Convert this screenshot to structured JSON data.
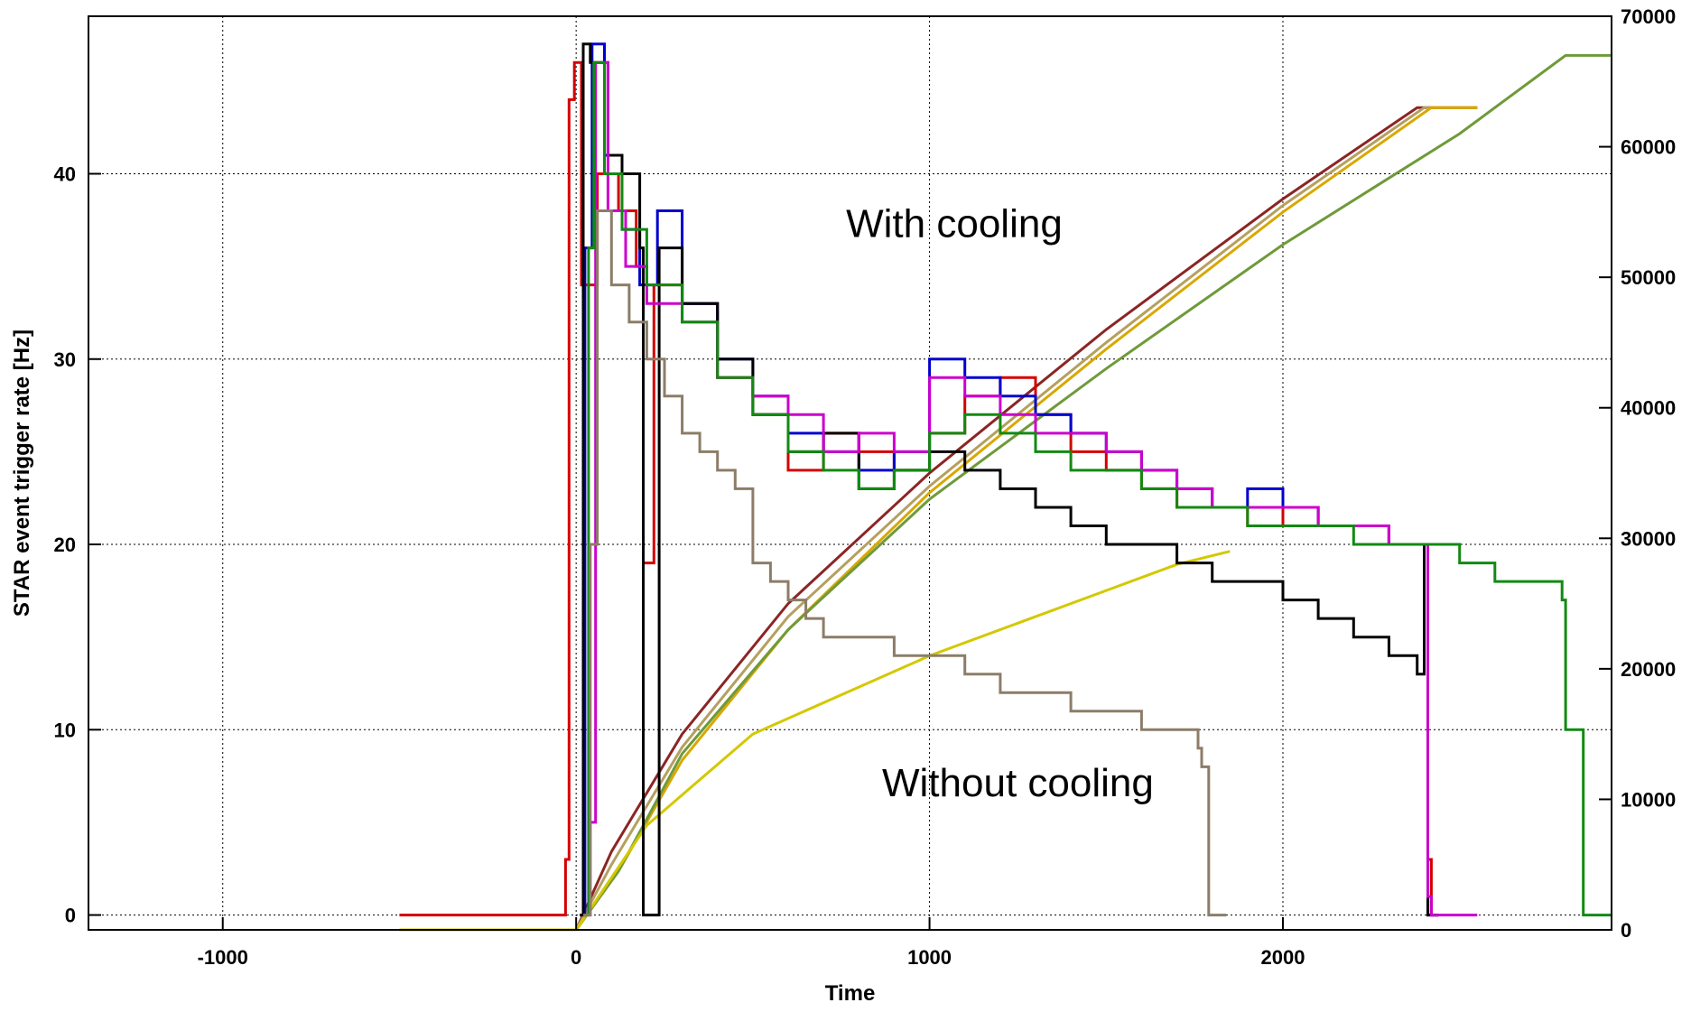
{
  "chart_data": {
    "type": "line",
    "title": "",
    "xlabel": "Time",
    "ylabel": "STAR event trigger rate [Hz]",
    "y2label": "",
    "xlim": [
      -1380,
      2930
    ],
    "ylim": [
      -0.8,
      48.5
    ],
    "y2lim": [
      0,
      70000
    ],
    "x_ticks": [
      -1000,
      0,
      1000,
      2000
    ],
    "y_ticks": [
      0,
      10,
      20,
      30,
      40
    ],
    "y2_ticks": [
      0,
      10000,
      20000,
      30000,
      40000,
      50000,
      60000,
      70000
    ],
    "grid": true,
    "annotations": [
      {
        "text": "With cooling",
        "x": 1070,
        "y": 36.6
      },
      {
        "text": "Without cooling",
        "x": 1250,
        "y": 6.4
      }
    ],
    "rate_series": [
      {
        "color": "#d40000",
        "axis": "left",
        "values": [
          [
            -500,
            0
          ],
          [
            -30,
            0
          ],
          [
            -30,
            3
          ],
          [
            -20,
            44
          ],
          [
            -5,
            46
          ],
          [
            15,
            34
          ],
          [
            60,
            40
          ],
          [
            120,
            38
          ],
          [
            170,
            35
          ],
          [
            190,
            19
          ],
          [
            220,
            34
          ],
          [
            300,
            33
          ],
          [
            400,
            29
          ],
          [
            500,
            27
          ],
          [
            600,
            24
          ],
          [
            700,
            26
          ],
          [
            800,
            25
          ],
          [
            900,
            24
          ],
          [
            1000,
            26
          ],
          [
            1100,
            28
          ],
          [
            1200,
            29
          ],
          [
            1300,
            27
          ],
          [
            1400,
            25
          ],
          [
            1500,
            24
          ],
          [
            1600,
            23
          ],
          [
            1700,
            22
          ],
          [
            1800,
            22
          ],
          [
            1900,
            21
          ],
          [
            2000,
            22
          ],
          [
            2100,
            21
          ],
          [
            2200,
            21
          ],
          [
            2300,
            20
          ],
          [
            2390,
            20
          ],
          [
            2400,
            20
          ],
          [
            2410,
            3
          ],
          [
            2420,
            0
          ],
          [
            2440,
            0
          ]
        ]
      },
      {
        "color": "#0000cc",
        "axis": "left",
        "values": [
          [
            20,
            0
          ],
          [
            25,
            36
          ],
          [
            45,
            47
          ],
          [
            80,
            41
          ],
          [
            130,
            37
          ],
          [
            180,
            34
          ],
          [
            230,
            38
          ],
          [
            300,
            33
          ],
          [
            400,
            30
          ],
          [
            500,
            28
          ],
          [
            600,
            26
          ],
          [
            700,
            25
          ],
          [
            800,
            24
          ],
          [
            900,
            25
          ],
          [
            1000,
            30
          ],
          [
            1100,
            29
          ],
          [
            1200,
            28
          ],
          [
            1300,
            27
          ],
          [
            1400,
            26
          ],
          [
            1500,
            25
          ],
          [
            1600,
            24
          ],
          [
            1700,
            23
          ],
          [
            1800,
            22
          ],
          [
            1900,
            23
          ],
          [
            2000,
            22
          ],
          [
            2100,
            21
          ],
          [
            2200,
            21
          ],
          [
            2300,
            20
          ],
          [
            2400,
            20
          ],
          [
            2410,
            0
          ],
          [
            2440,
            0
          ]
        ]
      },
      {
        "color": "#000000",
        "axis": "left",
        "values": [
          [
            10,
            0
          ],
          [
            20,
            47
          ],
          [
            40,
            46
          ],
          [
            90,
            41
          ],
          [
            130,
            40
          ],
          [
            180,
            36
          ],
          [
            190,
            0
          ],
          [
            230,
            0
          ],
          [
            235,
            36
          ],
          [
            300,
            33
          ],
          [
            400,
            30
          ],
          [
            500,
            27
          ],
          [
            600,
            25
          ],
          [
            700,
            26
          ],
          [
            800,
            23
          ],
          [
            900,
            24
          ],
          [
            1000,
            25
          ],
          [
            1100,
            24
          ],
          [
            1200,
            23
          ],
          [
            1300,
            22
          ],
          [
            1400,
            21
          ],
          [
            1500,
            20
          ],
          [
            1600,
            20
          ],
          [
            1700,
            19
          ],
          [
            1800,
            18
          ],
          [
            1900,
            18
          ],
          [
            2000,
            17
          ],
          [
            2100,
            16
          ],
          [
            2200,
            15
          ],
          [
            2300,
            14
          ],
          [
            2380,
            13
          ],
          [
            2400,
            20
          ],
          [
            2410,
            0
          ],
          [
            2440,
            0
          ]
        ]
      },
      {
        "color": "#cc00cc",
        "axis": "left",
        "values": [
          [
            30,
            0
          ],
          [
            40,
            5
          ],
          [
            55,
            46
          ],
          [
            90,
            38
          ],
          [
            140,
            35
          ],
          [
            200,
            33
          ],
          [
            300,
            32
          ],
          [
            400,
            29
          ],
          [
            500,
            28
          ],
          [
            600,
            27
          ],
          [
            700,
            25
          ],
          [
            800,
            26
          ],
          [
            900,
            25
          ],
          [
            1000,
            29
          ],
          [
            1100,
            28
          ],
          [
            1200,
            27
          ],
          [
            1300,
            26
          ],
          [
            1400,
            26
          ],
          [
            1500,
            25
          ],
          [
            1600,
            24
          ],
          [
            1700,
            23
          ],
          [
            1800,
            22
          ],
          [
            1900,
            22
          ],
          [
            2000,
            22
          ],
          [
            2100,
            21
          ],
          [
            2200,
            21
          ],
          [
            2300,
            20
          ],
          [
            2390,
            20
          ],
          [
            2410,
            1
          ],
          [
            2420,
            0
          ],
          [
            2550,
            0
          ]
        ]
      },
      {
        "color": "#128a12",
        "axis": "left",
        "values": [
          [
            25,
            0
          ],
          [
            35,
            36
          ],
          [
            50,
            46
          ],
          [
            80,
            40
          ],
          [
            130,
            37
          ],
          [
            200,
            34
          ],
          [
            300,
            32
          ],
          [
            400,
            29
          ],
          [
            500,
            27
          ],
          [
            600,
            25
          ],
          [
            700,
            24
          ],
          [
            800,
            23
          ],
          [
            900,
            24
          ],
          [
            1000,
            26
          ],
          [
            1100,
            27
          ],
          [
            1200,
            26
          ],
          [
            1300,
            25
          ],
          [
            1400,
            24
          ],
          [
            1500,
            24
          ],
          [
            1600,
            23
          ],
          [
            1700,
            22
          ],
          [
            1800,
            22
          ],
          [
            1900,
            21
          ],
          [
            2000,
            21
          ],
          [
            2100,
            21
          ],
          [
            2200,
            20
          ],
          [
            2300,
            20
          ],
          [
            2400,
            20
          ],
          [
            2500,
            19
          ],
          [
            2600,
            18
          ],
          [
            2700,
            18
          ],
          [
            2790,
            17
          ],
          [
            2800,
            10
          ],
          [
            2850,
            0
          ],
          [
            2930,
            0
          ]
        ]
      },
      {
        "color": "#8c7d68",
        "axis": "left",
        "values": [
          [
            20,
            0
          ],
          [
            40,
            20
          ],
          [
            60,
            38
          ],
          [
            100,
            34
          ],
          [
            150,
            32
          ],
          [
            200,
            30
          ],
          [
            250,
            28
          ],
          [
            300,
            26
          ],
          [
            350,
            25
          ],
          [
            400,
            24
          ],
          [
            450,
            23
          ],
          [
            500,
            19
          ],
          [
            550,
            18
          ],
          [
            600,
            17
          ],
          [
            650,
            16
          ],
          [
            700,
            15
          ],
          [
            800,
            15
          ],
          [
            900,
            14
          ],
          [
            1000,
            14
          ],
          [
            1100,
            13
          ],
          [
            1200,
            12
          ],
          [
            1300,
            12
          ],
          [
            1400,
            11
          ],
          [
            1500,
            11
          ],
          [
            1600,
            10
          ],
          [
            1700,
            10
          ],
          [
            1760,
            9
          ],
          [
            1770,
            8
          ],
          [
            1790,
            0
          ],
          [
            1840,
            0
          ]
        ]
      }
    ],
    "integral_series": [
      {
        "color": "#8b2525",
        "axis": "right",
        "values": [
          [
            0,
            0
          ],
          [
            100,
            6000
          ],
          [
            300,
            15000
          ],
          [
            600,
            25000
          ],
          [
            1000,
            35000
          ],
          [
            1500,
            46000
          ],
          [
            2000,
            56000
          ],
          [
            2380,
            63000
          ],
          [
            2550,
            63000
          ]
        ]
      },
      {
        "color": "#b5a060",
        "axis": "right",
        "values": [
          [
            0,
            0
          ],
          [
            100,
            5000
          ],
          [
            300,
            14000
          ],
          [
            600,
            24000
          ],
          [
            1000,
            34000
          ],
          [
            1500,
            45000
          ],
          [
            2000,
            55500
          ],
          [
            2400,
            63000
          ],
          [
            2550,
            63000
          ]
        ]
      },
      {
        "color": "#d8a800",
        "axis": "right",
        "values": [
          [
            0,
            0
          ],
          [
            120,
            4500
          ],
          [
            300,
            13000
          ],
          [
            600,
            23000
          ],
          [
            1000,
            33500
          ],
          [
            1500,
            44500
          ],
          [
            2000,
            55000
          ],
          [
            2420,
            63000
          ],
          [
            2550,
            63000
          ]
        ]
      },
      {
        "color": "#6f9a3a",
        "axis": "right",
        "values": [
          [
            0,
            0
          ],
          [
            120,
            4500
          ],
          [
            300,
            13500
          ],
          [
            600,
            23000
          ],
          [
            1000,
            33000
          ],
          [
            1500,
            43000
          ],
          [
            2000,
            52500
          ],
          [
            2500,
            61000
          ],
          [
            2800,
            67000
          ],
          [
            2930,
            67000
          ]
        ]
      },
      {
        "color": "#d4c800",
        "axis": "right",
        "values": [
          [
            -500,
            0
          ],
          [
            0,
            0
          ],
          [
            200,
            8000
          ],
          [
            500,
            15000
          ],
          [
            1000,
            21000
          ],
          [
            1500,
            26000
          ],
          [
            1700,
            28000
          ],
          [
            1850,
            29000
          ]
        ]
      }
    ]
  }
}
